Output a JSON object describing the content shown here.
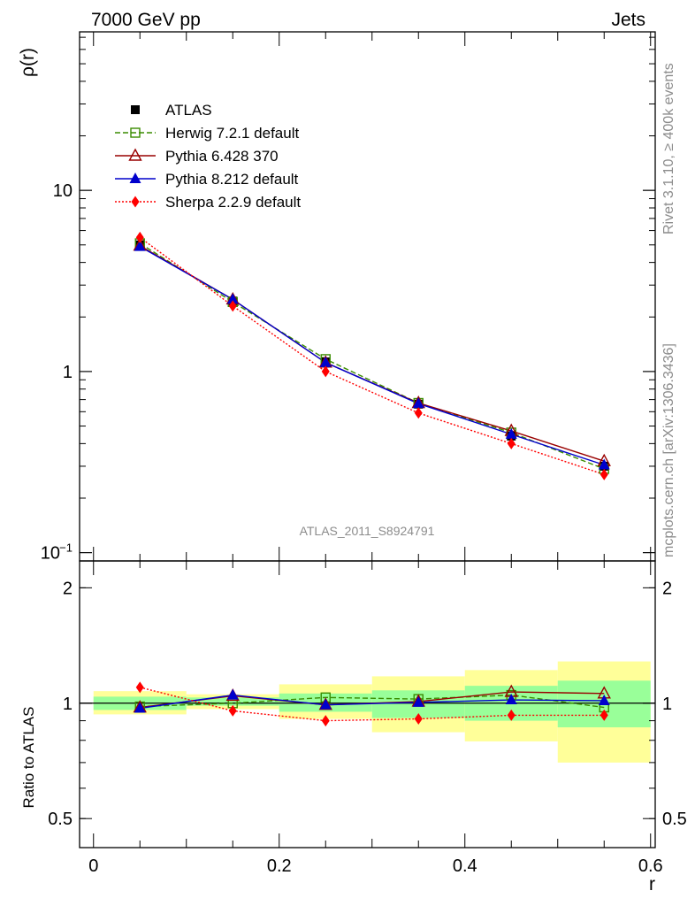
{
  "header": {
    "left_title": "7000 GeV pp",
    "right_title": "Jets"
  },
  "side_labels": {
    "rivet": "Rivet 3.1.10, ≥ 400k events",
    "mcplots": "mcplots.cern.ch [arXiv:1306.3436]"
  },
  "watermark": "ATLAS_2011_S8924791",
  "colors": {
    "atlas": "#000000",
    "herwig": "#3a8c00",
    "pythia6": "#990000",
    "pythia8": "#0000cc",
    "sherpa": "#ff0000",
    "band_inner": "#99ff99",
    "band_outer": "#ffff99"
  },
  "chart_data": [
    {
      "type": "line",
      "panel": "main",
      "ylabel": "ρ(r)",
      "xlabel": "",
      "yscale": "log",
      "ylim": [
        0.09,
        75
      ],
      "xlim": [
        -0.015,
        0.605
      ],
      "y_ticks": [
        {
          "value": 0.1,
          "label": "10",
          "sup": "−1"
        },
        {
          "value": 1,
          "label": "1",
          "sup": ""
        },
        {
          "value": 10,
          "label": "10",
          "sup": ""
        }
      ],
      "x": [
        0.05,
        0.15,
        0.25,
        0.35,
        0.45,
        0.55
      ],
      "series": [
        {
          "name": "ATLAS",
          "key": "atlas",
          "marker": "square-filled",
          "line": "none",
          "values": [
            5.0,
            2.45,
            1.13,
            0.66,
            0.44,
            0.3
          ]
        },
        {
          "name": "Herwig 7.2.1 default",
          "key": "herwig",
          "marker": "square-open",
          "line": "dashed",
          "values": [
            5.1,
            2.42,
            1.17,
            0.67,
            0.46,
            0.29
          ]
        },
        {
          "name": "Pythia 6.428 370",
          "key": "pythia6",
          "marker": "triangle-open",
          "line": "solid",
          "values": [
            4.95,
            2.5,
            1.12,
            0.67,
            0.47,
            0.32
          ]
        },
        {
          "name": "Pythia 8.212 default",
          "key": "pythia8",
          "marker": "triangle-filled",
          "line": "solid",
          "values": [
            4.9,
            2.5,
            1.12,
            0.665,
            0.45,
            0.305
          ]
        },
        {
          "name": "Sherpa 2.2.9 default",
          "key": "sherpa",
          "marker": "diamond-filled",
          "line": "dotted",
          "values": [
            5.5,
            2.3,
            1.0,
            0.59,
            0.4,
            0.27
          ]
        }
      ]
    },
    {
      "type": "line",
      "panel": "ratio",
      "ylabel": "Ratio to ATLAS",
      "xlabel": "r",
      "yscale": "log",
      "ylim": [
        0.42,
        2.35
      ],
      "xlim": [
        -0.015,
        0.605
      ],
      "y_ticks": [
        {
          "value": 0.5,
          "label": "0.5"
        },
        {
          "value": 1,
          "label": "1"
        },
        {
          "value": 2,
          "label": "2"
        }
      ],
      "x_ticks": [
        {
          "value": 0,
          "label": "0"
        },
        {
          "value": 0.2,
          "label": "0.2"
        },
        {
          "value": 0.4,
          "label": "0.4"
        },
        {
          "value": 0.6,
          "label": "0.6"
        }
      ],
      "x": [
        0.05,
        0.15,
        0.25,
        0.35,
        0.45,
        0.55
      ],
      "uncertainty_bands": [
        {
          "xmin": 0.0,
          "xmax": 0.1,
          "inner": [
            0.96,
            1.04
          ],
          "outer": [
            0.935,
            1.075
          ]
        },
        {
          "xmin": 0.1,
          "xmax": 0.2,
          "inner": [
            0.985,
            1.035
          ],
          "outer": [
            0.965,
            1.055
          ]
        },
        {
          "xmin": 0.2,
          "xmax": 0.3,
          "inner": [
            0.95,
            1.06
          ],
          "outer": [
            0.91,
            1.12
          ]
        },
        {
          "xmin": 0.3,
          "xmax": 0.4,
          "inner": [
            0.915,
            1.08
          ],
          "outer": [
            0.84,
            1.175
          ]
        },
        {
          "xmin": 0.4,
          "xmax": 0.5,
          "inner": [
            0.9,
            1.11
          ],
          "outer": [
            0.795,
            1.22
          ]
        },
        {
          "xmin": 0.5,
          "xmax": 0.6,
          "inner": [
            0.865,
            1.145
          ],
          "outer": [
            0.7,
            1.285
          ]
        }
      ],
      "series": [
        {
          "name": "Herwig 7.2.1 default",
          "key": "herwig",
          "marker": "square-open",
          "line": "dashed",
          "values": [
            0.98,
            1.0,
            1.035,
            1.025,
            1.05,
            0.975
          ]
        },
        {
          "name": "Pythia 6.428 370",
          "key": "pythia6",
          "marker": "triangle-open",
          "line": "solid",
          "values": [
            0.975,
            1.045,
            0.99,
            1.01,
            1.07,
            1.06
          ]
        },
        {
          "name": "Pythia 8.212 default",
          "key": "pythia8",
          "marker": "triangle-filled",
          "line": "solid",
          "values": [
            0.97,
            1.05,
            0.99,
            1.005,
            1.02,
            1.015
          ]
        },
        {
          "name": "Sherpa 2.2.9 default",
          "key": "sherpa",
          "marker": "diamond-filled",
          "line": "dotted",
          "values": [
            1.1,
            0.955,
            0.9,
            0.91,
            0.93,
            0.93
          ]
        }
      ]
    }
  ]
}
